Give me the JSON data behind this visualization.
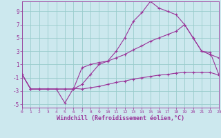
{
  "xlabel": "Windchill (Refroidissement éolien,°C)",
  "background_color": "#cce8ee",
  "grid_color": "#99cccc",
  "line_color": "#993399",
  "xlim": [
    0,
    23
  ],
  "ylim": [
    -5.5,
    10.5
  ],
  "xticks": [
    0,
    1,
    2,
    3,
    4,
    5,
    6,
    7,
    8,
    9,
    10,
    11,
    12,
    13,
    14,
    15,
    16,
    17,
    18,
    19,
    20,
    21,
    22,
    23
  ],
  "yticks": [
    -5,
    -3,
    -1,
    1,
    3,
    5,
    7,
    9
  ],
  "line1_x": [
    0,
    1,
    2,
    3,
    4,
    5,
    6,
    7,
    8,
    9,
    10,
    11,
    12,
    13,
    14,
    15,
    16,
    17,
    18,
    19,
    20,
    21,
    22,
    23
  ],
  "line1_y": [
    -0.5,
    -2.7,
    -2.7,
    -2.7,
    -2.7,
    -4.8,
    -2.6,
    -2.7,
    -2.5,
    -2.3,
    -2.0,
    -1.7,
    -1.5,
    -1.2,
    -1.0,
    -0.8,
    -0.6,
    -0.5,
    -0.3,
    -0.2,
    -0.2,
    -0.2,
    -0.2,
    -0.6
  ],
  "line2_x": [
    0,
    1,
    2,
    3,
    4,
    5,
    6,
    7,
    8,
    9,
    10,
    11,
    12,
    13,
    14,
    15,
    16,
    17,
    18,
    19,
    20,
    21,
    22,
    23
  ],
  "line2_y": [
    -0.5,
    -2.7,
    -2.7,
    -2.7,
    -2.7,
    -2.7,
    -2.7,
    -2.0,
    -0.5,
    1.0,
    1.5,
    3.0,
    5.0,
    7.5,
    8.8,
    10.5,
    9.5,
    9.0,
    8.5,
    7.0,
    5.0,
    3.0,
    2.5,
    2.0
  ],
  "line3_x": [
    0,
    1,
    2,
    3,
    4,
    5,
    6,
    7,
    8,
    9,
    10,
    11,
    12,
    13,
    14,
    15,
    16,
    17,
    18,
    19,
    20,
    21,
    22,
    23
  ],
  "line3_y": [
    -0.5,
    -2.7,
    -2.7,
    -2.7,
    -2.7,
    -2.7,
    -2.7,
    0.5,
    1.0,
    1.3,
    1.5,
    2.0,
    2.5,
    3.2,
    3.8,
    4.5,
    5.0,
    5.5,
    6.0,
    7.0,
    5.0,
    3.0,
    2.8,
    -0.5
  ]
}
